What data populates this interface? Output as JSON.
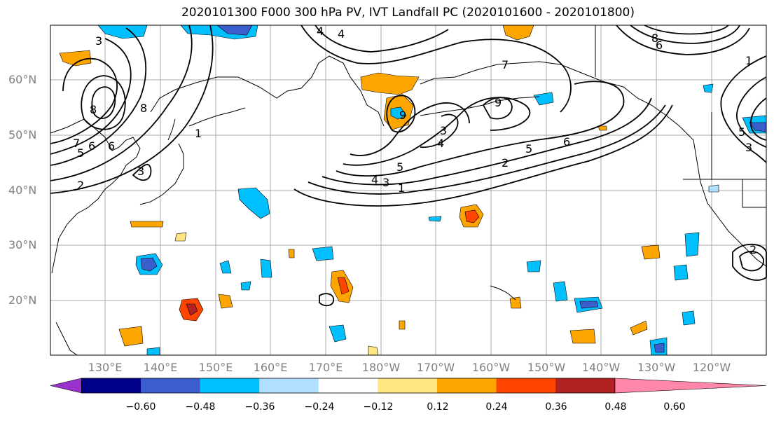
{
  "title": "2020101300 F000 300 hPa PV, IVT Landfall PC (2020101600 - 2020101800)",
  "lat_labels": [
    "60°N",
    "50°N",
    "40°N",
    "30°N",
    "20°N"
  ],
  "lon_labels": [
    "130°E",
    "140°E",
    "150°E",
    "160°E",
    "170°E",
    "180°W",
    "170°W",
    "160°W",
    "150°W",
    "140°W",
    "130°W",
    "120°W"
  ],
  "colorbar": {
    "ticks": [
      "−0.60",
      "−0.48",
      "−0.36",
      "−0.24",
      "−0.12",
      "0.12",
      "0.24",
      "0.36",
      "0.48",
      "0.60"
    ],
    "colors": [
      "#9932cc",
      "#00008b",
      "#3a5fcd",
      "#00bfff",
      "#b0e0ff",
      "#ffffff",
      "#ffe680",
      "#ffa500",
      "#ff4500",
      "#b22222",
      "#ff88aa"
    ]
  },
  "contour_labels": [
    "3",
    "4",
    "8",
    "6",
    "4",
    "1",
    "7",
    "8",
    "7",
    "5",
    "6",
    "2",
    "3",
    "9",
    "3",
    "4",
    "5",
    "6",
    "5",
    "4",
    "3",
    "1",
    "2",
    "9",
    "8",
    "6",
    "1",
    "3",
    "5",
    "2"
  ],
  "colors": {
    "contour": "#000000",
    "grid": "#aaaaaa",
    "coast": "#000000"
  }
}
